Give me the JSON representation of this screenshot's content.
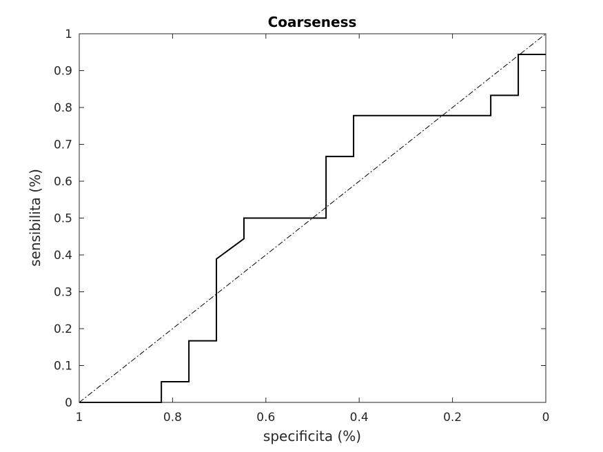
{
  "chart_data": {
    "type": "line",
    "title": "Coarseness",
    "xlabel": "specificita (%)",
    "ylabel": "sensibilita (%)",
    "xlim": [
      1,
      0
    ],
    "ylim": [
      0,
      1
    ],
    "x_reversed": true,
    "grid": false,
    "xticks": [
      1,
      0.8,
      0.6,
      0.4,
      0.2,
      0
    ],
    "xtick_labels": [
      "1",
      "0.8",
      "0.6",
      "0.4",
      "0.2",
      "0"
    ],
    "yticks": [
      0,
      0.1,
      0.2,
      0.3,
      0.4,
      0.5,
      0.6,
      0.7,
      0.8,
      0.9,
      1
    ],
    "ytick_labels": [
      "0",
      "0.1",
      "0.2",
      "0.3",
      "0.4",
      "0.5",
      "0.6",
      "0.7",
      "0.8",
      "0.9",
      "1"
    ],
    "series": [
      {
        "style": "solid",
        "color": "#000000",
        "x": [
          1,
          0.824,
          0.824,
          0.765,
          0.765,
          0.706,
          0.706,
          0.647,
          0.647,
          0.471,
          0.471,
          0.412,
          0.412,
          0.118,
          0.118,
          0.059,
          0.059,
          0
        ],
        "y": [
          0,
          0,
          0.056,
          0.056,
          0.167,
          0.167,
          0.389,
          0.444,
          0.5,
          0.5,
          0.667,
          0.667,
          0.778,
          0.778,
          0.833,
          0.833,
          0.944,
          0.944
        ]
      },
      {
        "style": "dash-dot",
        "color": "#000000",
        "x": [
          1,
          0
        ],
        "y": [
          0,
          1
        ]
      }
    ]
  }
}
